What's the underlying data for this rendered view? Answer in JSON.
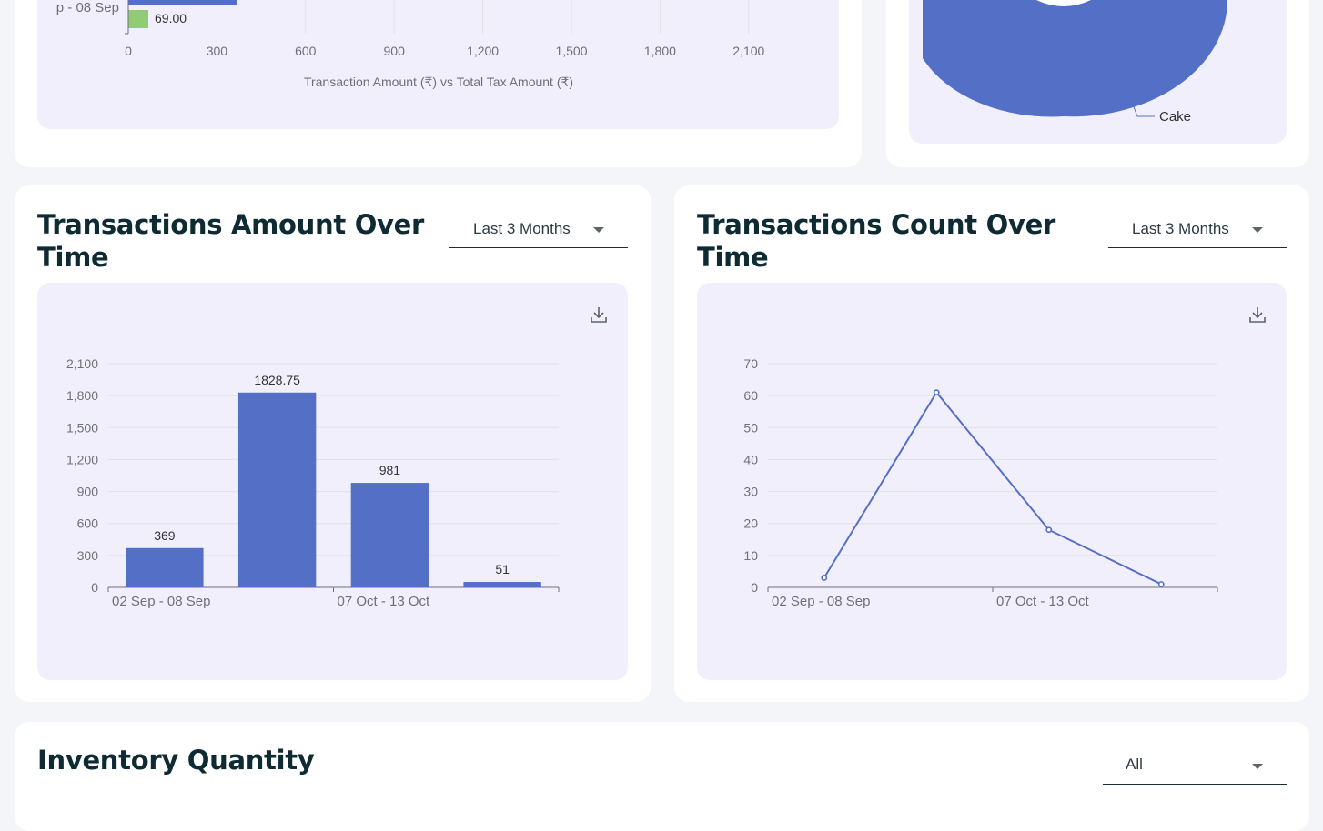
{
  "top_left": {
    "category_label": "p - 08 Sep",
    "tax_value": "69.00",
    "x_ticks": [
      "0",
      "300",
      "600",
      "900",
      "1,200",
      "1,500",
      "1,800",
      "2,100"
    ],
    "x_axis_label": "Transaction Amount (₹) vs Total Tax Amount (₹)",
    "colors": {
      "amount": "#5470c6",
      "tax": "#91cc75"
    }
  },
  "top_right": {
    "slice_label": "Cake",
    "colors": {
      "slice": "#5470c6"
    }
  },
  "amount_card": {
    "title_line1": "Transactions Amount Over",
    "title_line2": "Time",
    "select_value": "Last 3 Months",
    "download_icon": "download-icon",
    "chart_data": {
      "type": "bar",
      "categories": [
        "02 Sep - 08 Sep",
        "",
        "07 Oct - 13 Oct",
        ""
      ],
      "values": [
        369,
        1828.75,
        981,
        51
      ],
      "data_labels": [
        "369",
        "1828.75",
        "981",
        "51"
      ],
      "y_ticks": [
        "0",
        "300",
        "600",
        "900",
        "1,200",
        "1,500",
        "1,800",
        "2,100"
      ],
      "ylim": [
        0,
        2100
      ],
      "grid": true,
      "color": "#5470c6"
    }
  },
  "count_card": {
    "title_line1": "Transactions Count Over",
    "title_line2": "Time",
    "select_value": "Last 3 Months",
    "download_icon": "download-icon",
    "chart_data": {
      "type": "line",
      "categories": [
        "02 Sep - 08 Sep",
        "",
        "07 Oct - 13 Oct",
        ""
      ],
      "values": [
        3,
        61,
        18,
        1
      ],
      "y_ticks": [
        "0",
        "10",
        "20",
        "30",
        "40",
        "50",
        "60",
        "70"
      ],
      "ylim": [
        0,
        70
      ],
      "grid": true,
      "color": "#5470c6"
    }
  },
  "inventory_card": {
    "title": "Inventory Quantity",
    "select_value": "All"
  }
}
